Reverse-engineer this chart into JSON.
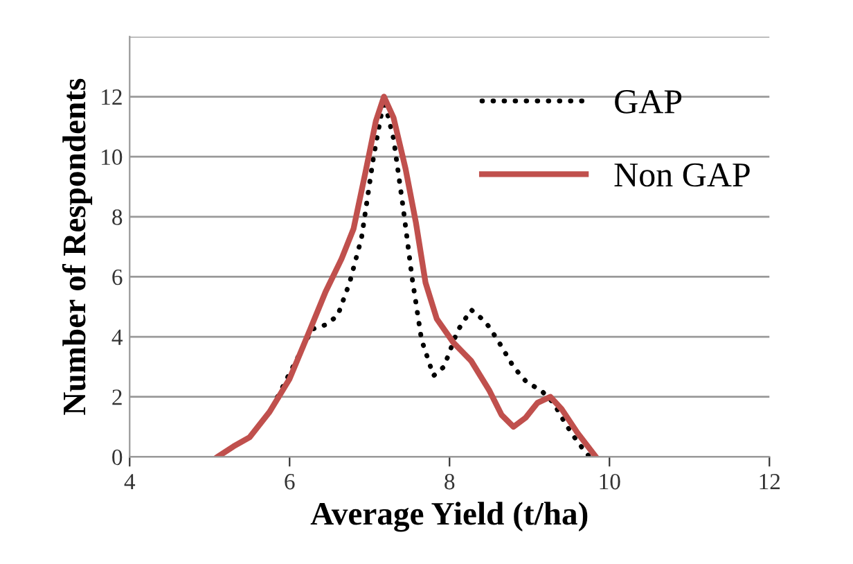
{
  "chart_data": {
    "type": "line",
    "xlabel": "Average Yield (t/ha)",
    "ylabel": "Number of Respondents",
    "xlim": [
      4,
      12
    ],
    "xticks": [
      4,
      6,
      8,
      10,
      12
    ],
    "ylim": [
      0,
      14
    ],
    "yticks": [
      0,
      2,
      4,
      6,
      8,
      10,
      12,
      {
        "value": 14,
        "label": null
      }
    ],
    "grid": "y",
    "legend": "top right",
    "marker": "none",
    "series": [
      {
        "name": "GAP",
        "color": "#000000",
        "line_style": "dotted",
        "x": [
          5.85,
          6.1,
          6.28,
          6.45,
          6.6,
          6.75,
          6.9,
          7.05,
          7.18,
          7.3,
          7.42,
          7.53,
          7.65,
          7.8,
          7.93,
          8.1,
          8.27,
          8.45,
          8.6,
          8.8,
          8.96,
          9.15,
          9.3,
          9.45,
          9.6,
          9.75
        ],
        "values": [
          2.0,
          3.3,
          4.25,
          4.4,
          4.7,
          5.8,
          7.3,
          10.0,
          11.9,
          10.6,
          8.3,
          6.0,
          3.9,
          2.7,
          3.0,
          4.2,
          4.9,
          4.5,
          3.9,
          3.0,
          2.5,
          2.2,
          1.8,
          1.1,
          0.5,
          0.0
        ]
      },
      {
        "name": "Non GAP",
        "color": "#c0504d",
        "line_style": "solid",
        "x": [
          5.1,
          5.3,
          5.5,
          5.75,
          6.0,
          6.25,
          6.45,
          6.65,
          6.8,
          6.95,
          7.08,
          7.18,
          7.3,
          7.45,
          7.58,
          7.7,
          7.84,
          8.05,
          8.27,
          8.5,
          8.65,
          8.8,
          8.95,
          9.1,
          9.26,
          9.4,
          9.6,
          9.83
        ],
        "values": [
          0.0,
          0.35,
          0.65,
          1.5,
          2.6,
          4.2,
          5.5,
          6.6,
          7.6,
          9.5,
          11.2,
          12.0,
          11.3,
          9.6,
          7.8,
          5.8,
          4.6,
          3.8,
          3.2,
          2.2,
          1.4,
          1.0,
          1.3,
          1.8,
          2.0,
          1.6,
          0.8,
          0.0
        ]
      }
    ]
  }
}
